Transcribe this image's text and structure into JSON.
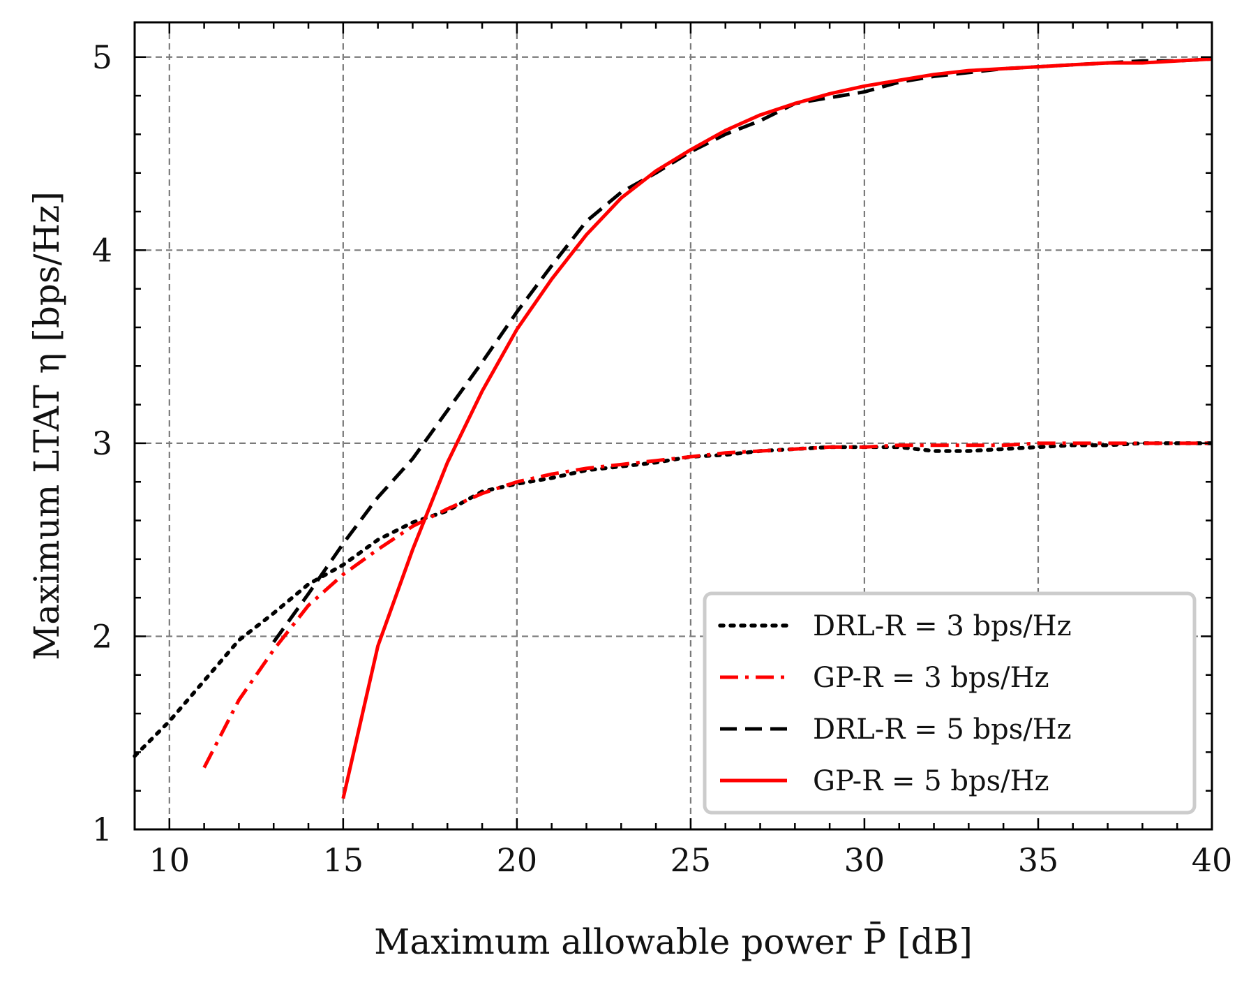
{
  "chart_data": {
    "type": "line",
    "xlabel": "Maximum allowable power P̄ [dB]",
    "ylabel": "Maximum LTAT η [bps/Hz]",
    "xlim": [
      9,
      40
    ],
    "ylim": [
      1,
      5.18
    ],
    "x_ticks": [
      10,
      15,
      20,
      25,
      30,
      35,
      40
    ],
    "y_ticks": [
      1,
      2,
      3,
      4,
      5
    ],
    "x_minor_step": 1,
    "y_minor_step": 0.2,
    "grid": true,
    "legend_position": "lower-right",
    "series": [
      {
        "name": "DRL-R = 3 bps/Hz",
        "style": "dotted",
        "color": "#000000",
        "x": [
          9,
          10,
          11,
          12,
          13,
          14,
          15,
          16,
          17,
          18,
          19,
          20,
          21,
          22,
          23,
          24,
          25,
          26,
          27,
          28,
          29,
          30,
          31,
          32,
          33,
          34,
          35,
          36,
          37,
          38,
          39,
          40
        ],
        "y": [
          1.38,
          1.56,
          1.77,
          1.98,
          2.12,
          2.27,
          2.37,
          2.5,
          2.59,
          2.65,
          2.75,
          2.79,
          2.82,
          2.86,
          2.88,
          2.9,
          2.93,
          2.94,
          2.96,
          2.97,
          2.98,
          2.98,
          2.98,
          2.96,
          2.96,
          2.97,
          2.98,
          2.99,
          2.99,
          3.0,
          3.0,
          3.0
        ]
      },
      {
        "name": "GP-R = 3 bps/Hz",
        "style": "dashdot",
        "color": "#ff0000",
        "x": [
          11,
          12,
          13,
          14,
          15,
          16,
          17,
          18,
          19,
          20,
          21,
          22,
          23,
          24,
          25,
          26,
          27,
          28,
          29,
          30,
          31,
          32,
          33,
          34,
          35,
          36,
          37,
          38,
          39,
          40
        ],
        "y": [
          1.32,
          1.67,
          1.93,
          2.16,
          2.32,
          2.45,
          2.57,
          2.66,
          2.74,
          2.8,
          2.84,
          2.87,
          2.89,
          2.91,
          2.93,
          2.95,
          2.96,
          2.97,
          2.98,
          2.98,
          2.99,
          2.99,
          2.99,
          2.99,
          3.0,
          3.0,
          3.0,
          3.0,
          3.0,
          3.0
        ]
      },
      {
        "name": "DRL-R = 5 bps/Hz",
        "style": "dashed",
        "color": "#000000",
        "x": [
          13,
          14,
          15,
          16,
          17,
          18,
          19,
          20,
          21,
          22,
          23,
          24,
          25,
          26,
          27,
          28,
          29,
          30,
          31,
          32,
          33,
          34,
          35,
          36,
          37,
          38,
          39,
          40
        ],
        "y": [
          1.97,
          2.22,
          2.48,
          2.72,
          2.92,
          3.17,
          3.42,
          3.68,
          3.92,
          4.15,
          4.3,
          4.4,
          4.51,
          4.6,
          4.67,
          4.76,
          4.79,
          4.82,
          4.87,
          4.9,
          4.92,
          4.94,
          4.95,
          4.96,
          4.97,
          4.98,
          4.98,
          4.99
        ]
      },
      {
        "name": "GP-R = 5 bps/Hz",
        "style": "solid",
        "color": "#ff0000",
        "x": [
          15,
          16,
          17,
          18,
          19,
          20,
          21,
          22,
          23,
          24,
          25,
          26,
          27,
          28,
          29,
          30,
          31,
          32,
          33,
          34,
          35,
          36,
          37,
          38,
          39,
          40
        ],
        "y": [
          1.16,
          1.95,
          2.45,
          2.9,
          3.27,
          3.59,
          3.85,
          4.08,
          4.27,
          4.41,
          4.52,
          4.62,
          4.7,
          4.76,
          4.81,
          4.85,
          4.88,
          4.91,
          4.93,
          4.94,
          4.95,
          4.96,
          4.97,
          4.97,
          4.98,
          4.99
        ]
      }
    ]
  }
}
